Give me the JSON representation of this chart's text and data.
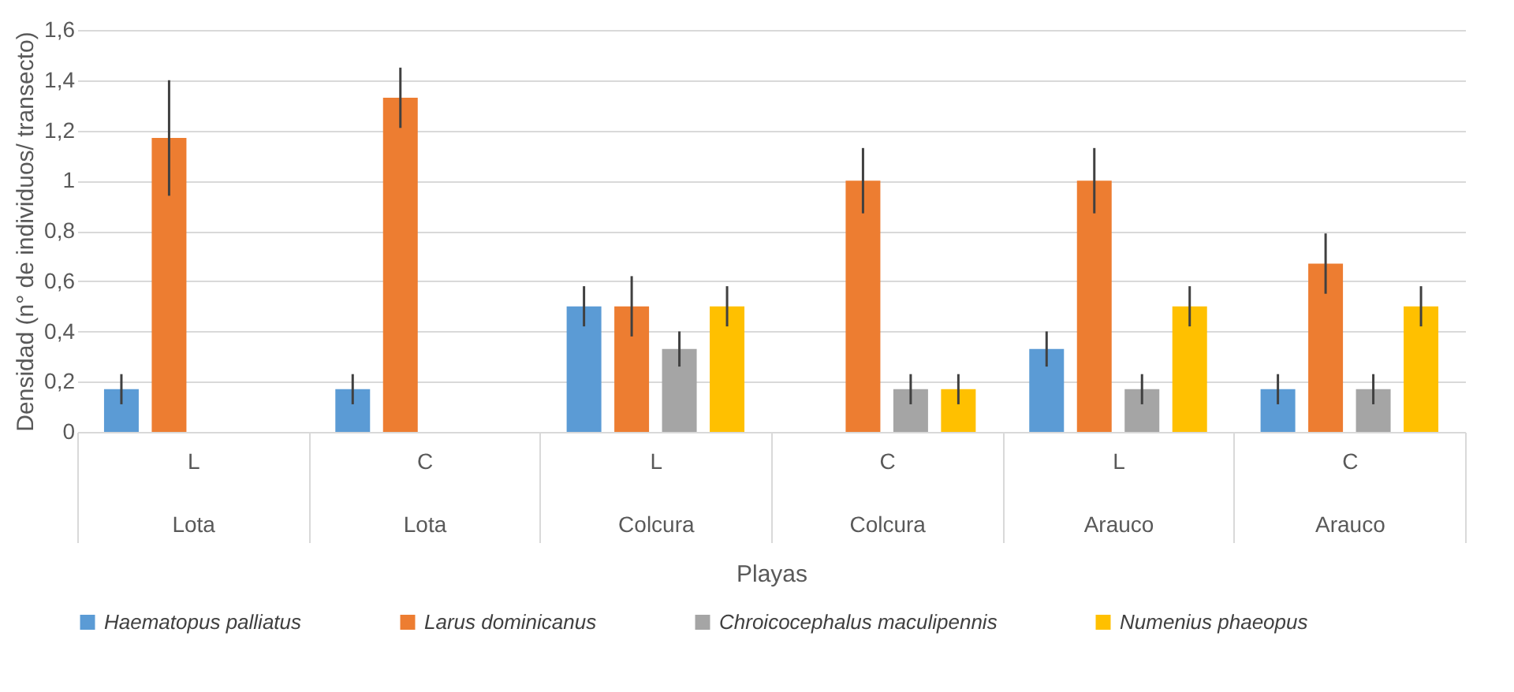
{
  "chart_data": {
    "type": "bar",
    "categories": [
      "L\nLota",
      "C\nLota",
      "L\nColcura",
      "C\nColcura",
      "L\nArauco",
      "C\nArauco"
    ],
    "xlabel": "Playas",
    "ylabel": "Densidad (n° de individuos/ transecto)",
    "ylim": [
      0,
      1.6
    ],
    "yticks": [
      0,
      {
        "value": 0.2,
        "label": "0,2"
      },
      {
        "value": 0.4,
        "label": "0,4"
      },
      {
        "value": 0.6,
        "label": "0,6"
      },
      {
        "value": 0.8,
        "label": "0,8"
      },
      1,
      {
        "value": 1.2,
        "label": "1,2"
      },
      {
        "value": 1.4,
        "label": "1,4"
      },
      {
        "value": 1.6,
        "label": "1,6"
      }
    ],
    "grid": "y",
    "legend": "bottom",
    "series": [
      {
        "name": "Haematopus palliatus",
        "color": "#5b9bd5",
        "values": [
          0.17,
          0.17,
          0.5,
          0,
          0.33,
          0.17
        ],
        "errors": [
          0.06,
          0.06,
          0.08,
          null,
          0.07,
          0.06
        ]
      },
      {
        "name": "Larus dominicanus",
        "color": "#ed7d31",
        "values": [
          1.17,
          1.33,
          0.5,
          1.0,
          1.0,
          0.67
        ],
        "errors": [
          0.23,
          0.12,
          0.12,
          0.13,
          0.13,
          0.12
        ]
      },
      {
        "name": "Chroicocephalus maculipennis",
        "color": "#a5a5a5",
        "values": [
          0,
          0,
          0.33,
          0.17,
          0.17,
          0.17
        ],
        "errors": [
          null,
          null,
          0.07,
          0.06,
          0.06,
          0.06
        ]
      },
      {
        "name": "Numenius phaeopus",
        "color": "#ffc000",
        "values": [
          0,
          0,
          0.5,
          0.17,
          0.5,
          0.5
        ],
        "errors": [
          null,
          null,
          0.08,
          0.06,
          0.08,
          0.08
        ]
      }
    ]
  }
}
